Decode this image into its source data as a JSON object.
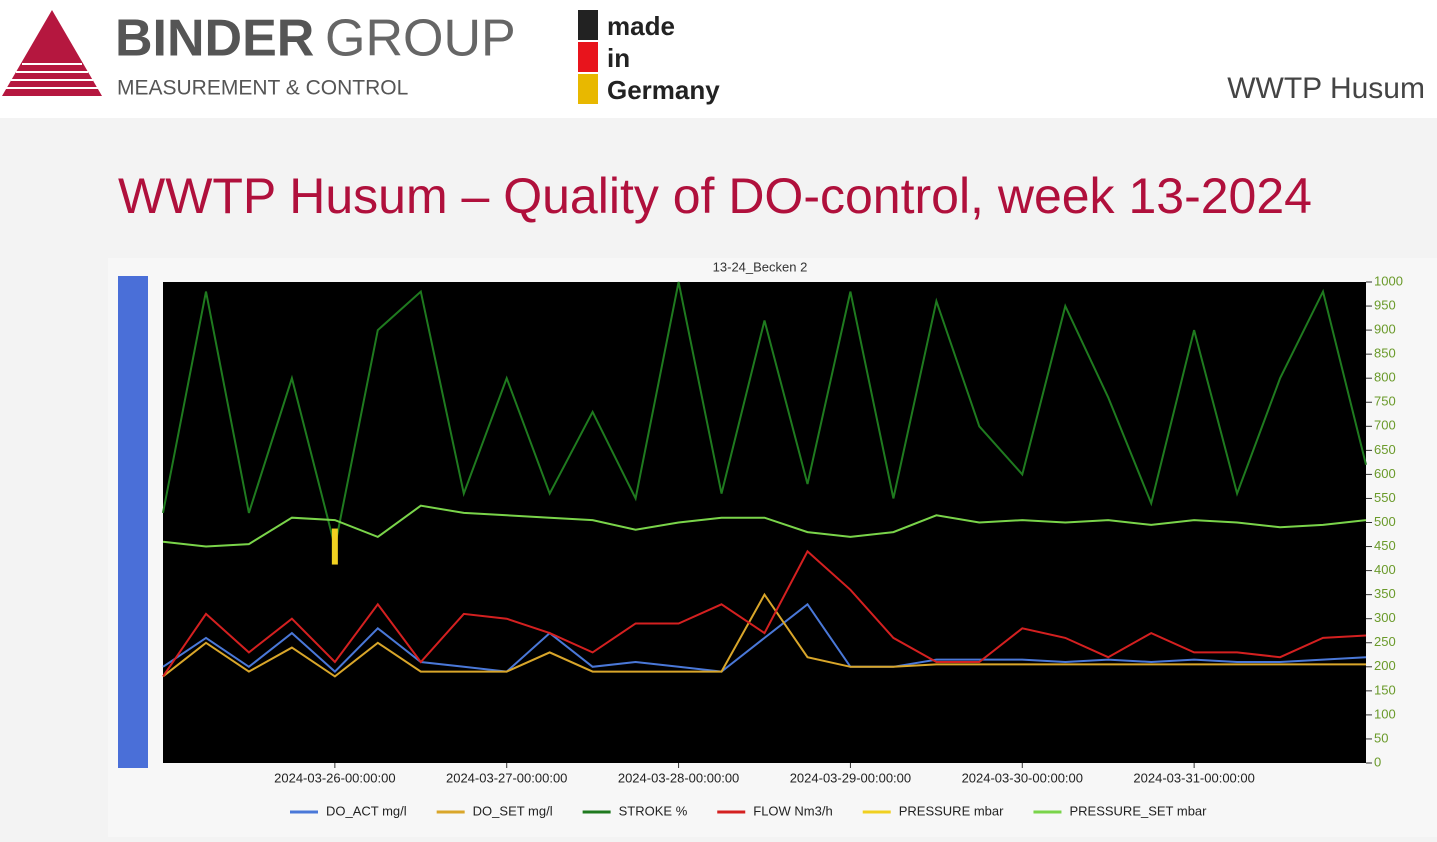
{
  "header": {
    "brand_bold": "BINDER",
    "brand_light": "GROUP",
    "tagline": "MEASUREMENT & CONTROL",
    "made_lines": [
      "made",
      "in",
      "Germany"
    ],
    "site": "WWTP Husum"
  },
  "slide_title": "WWTP Husum – Quality of DO-control, week 13-2024",
  "chart_data": {
    "type": "line",
    "title": "13-24_Becken  2",
    "x": [
      "2024-03-25-00:00:00",
      "2024-03-25-06:00:00",
      "2024-03-25-12:00:00",
      "2024-03-25-18:00:00",
      "2024-03-26-00:00:00",
      "2024-03-26-06:00:00",
      "2024-03-26-12:00:00",
      "2024-03-26-18:00:00",
      "2024-03-27-00:00:00",
      "2024-03-27-06:00:00",
      "2024-03-27-12:00:00",
      "2024-03-27-18:00:00",
      "2024-03-28-00:00:00",
      "2024-03-28-06:00:00",
      "2024-03-28-12:00:00",
      "2024-03-28-18:00:00",
      "2024-03-29-00:00:00",
      "2024-03-29-06:00:00",
      "2024-03-29-12:00:00",
      "2024-03-29-18:00:00",
      "2024-03-30-00:00:00",
      "2024-03-30-06:00:00",
      "2024-03-30-12:00:00",
      "2024-03-30-18:00:00",
      "2024-03-31-00:00:00",
      "2024-03-31-06:00:00",
      "2024-03-31-12:00:00",
      "2024-03-31-18:00:00",
      "2024-04-01-00:00:00"
    ],
    "xlim": [
      "2024-03-25-00:00:00",
      "2024-04-01-00:00:00"
    ],
    "xticks": [
      "2024-03-26-00:00:00",
      "2024-03-27-00:00:00",
      "2024-03-28-00:00:00",
      "2024-03-29-00:00:00",
      "2024-03-30-00:00:00",
      "2024-03-31-00:00:00"
    ],
    "y2lim": [
      0,
      1000
    ],
    "y2ticks": [
      0,
      50,
      100,
      150,
      200,
      250,
      300,
      350,
      400,
      450,
      500,
      550,
      600,
      650,
      700,
      750,
      800,
      850,
      900,
      950,
      1000
    ],
    "background": "#000000",
    "series": [
      {
        "name": "DO_ACT mg/l",
        "color": "#4a78d8",
        "axis": "y2",
        "values": [
          200,
          260,
          200,
          270,
          190,
          280,
          210,
          200,
          190,
          270,
          200,
          210,
          200,
          190,
          260,
          330,
          200,
          200,
          215,
          215,
          215,
          210,
          215,
          210,
          215,
          210,
          210,
          215,
          220
        ]
      },
      {
        "name": "DO_SET mg/l",
        "color": "#d9a62a",
        "axis": "y2",
        "values": [
          180,
          250,
          190,
          240,
          180,
          250,
          190,
          190,
          190,
          230,
          190,
          190,
          190,
          190,
          350,
          220,
          200,
          200,
          205,
          205,
          205,
          205,
          205,
          205,
          205,
          205,
          205,
          205,
          205
        ]
      },
      {
        "name": "STROKE %",
        "color": "#1f7a1f",
        "axis": "y2",
        "values": [
          520,
          980,
          520,
          800,
          450,
          900,
          980,
          560,
          800,
          560,
          730,
          550,
          1000,
          560,
          920,
          580,
          980,
          550,
          960,
          700,
          600,
          950,
          760,
          540,
          900,
          560,
          800,
          980,
          620
        ]
      },
      {
        "name": "FLOW Nm3/h",
        "color": "#d42020",
        "axis": "y2",
        "values": [
          180,
          310,
          230,
          300,
          210,
          330,
          210,
          310,
          300,
          270,
          230,
          290,
          290,
          330,
          270,
          440,
          360,
          260,
          210,
          210,
          280,
          260,
          220,
          270,
          230,
          230,
          220,
          260,
          265
        ]
      },
      {
        "name": "PRESSURE mbar",
        "color": "#f0d020",
        "axis": "y2",
        "values": [
          null,
          null,
          null,
          null,
          450,
          null,
          null,
          null,
          null,
          null,
          null,
          null,
          null,
          null,
          null,
          null,
          null,
          null,
          null,
          null,
          null,
          null,
          null,
          null,
          null,
          null,
          null,
          null,
          null
        ]
      },
      {
        "name": "PRESSURE_SET mbar",
        "color": "#7ad44a",
        "axis": "y2",
        "values": [
          460,
          450,
          455,
          510,
          505,
          470,
          535,
          520,
          515,
          510,
          505,
          485,
          500,
          510,
          510,
          480,
          470,
          480,
          515,
          500,
          505,
          500,
          505,
          495,
          505,
          500,
          490,
          495,
          505
        ]
      }
    ]
  }
}
